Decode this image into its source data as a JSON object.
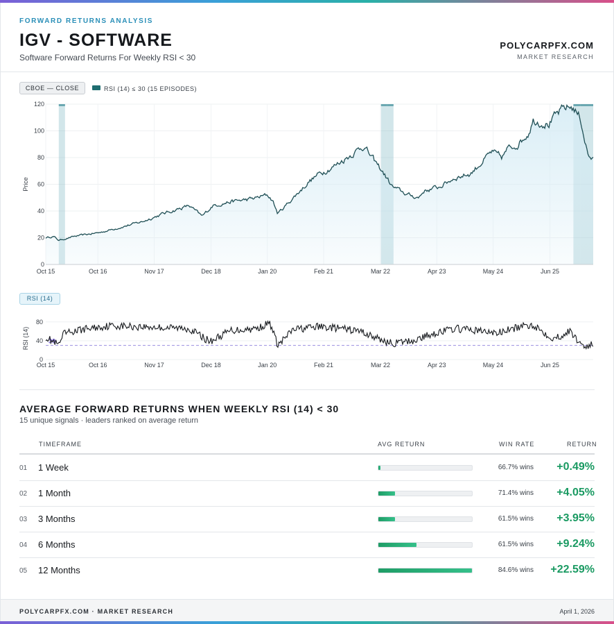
{
  "header": {
    "kicker": "FORWARD RETURNS ANALYSIS",
    "title": "IGV - SOFTWARE",
    "subtitle": "Software Forward Returns For Weekly RSI < 30",
    "brand": "POLYCARPFX.COM",
    "brand_sub": "MARKET RESEARCH"
  },
  "controls": {
    "source_button": "CBOE — CLOSE",
    "legend_label": "RSI (14) ≤ 30 (15 EPISODES)",
    "rsi_button": "RSI (14)"
  },
  "colors": {
    "price_line": "#1f4f55",
    "price_fill": "#d6ecf5",
    "shade": "#7fb8c4",
    "rsi_line": "#15181c",
    "threshold": "#9a8ee0",
    "positive": "#1a9a62"
  },
  "chart_data": [
    {
      "type": "area",
      "title": "IGV - SOFTWARE",
      "ylabel": "Price",
      "ylim": [
        0,
        120
      ],
      "yticks": [
        "0",
        "20",
        "40",
        "60",
        "80",
        "100",
        "120"
      ],
      "xticks": [
        "Oct 15",
        "Oct 16",
        "Nov 17",
        "Dec 18",
        "Jan 20",
        "Feb 21",
        "Mar 22",
        "Apr 23",
        "May 24",
        "Jun 25"
      ],
      "x": [
        2015.75,
        2015.9,
        2016.0,
        2016.3,
        2016.8,
        2017.2,
        2017.6,
        2018.0,
        2018.5,
        2018.75,
        2018.95,
        2019.3,
        2019.7,
        2020.0,
        2020.1,
        2020.2,
        2020.5,
        2020.8,
        2021.0,
        2021.3,
        2021.6,
        2021.85,
        2022.0,
        2022.2,
        2022.4,
        2022.7,
        2022.9,
        2023.0,
        2023.3,
        2023.6,
        2023.9,
        2024.0,
        2024.3,
        2024.5,
        2024.6,
        2024.8,
        2025.0,
        2025.1,
        2025.4,
        2025.55,
        2025.7,
        2025.85,
        2026.0,
        2026.15,
        2026.25
      ],
      "series": [
        {
          "name": "IGV Close",
          "values": [
            20,
            21,
            18,
            21,
            24,
            28,
            32,
            38,
            44,
            36,
            44,
            47,
            49,
            52,
            48,
            38,
            50,
            62,
            68,
            74,
            82,
            89,
            80,
            70,
            58,
            52,
            50,
            55,
            58,
            65,
            68,
            72,
            84,
            80,
            86,
            90,
            98,
            108,
            105,
            112,
            117,
            118,
            110,
            82,
            78
          ]
        }
      ],
      "signal_episodes": [
        "Jan 2016",
        "Mar 2022",
        "Jun 2022",
        "Feb 2026",
        "Mar 2026"
      ]
    },
    {
      "type": "line",
      "title": "RSI (14)",
      "ylabel": "RSI (14)",
      "ylim": [
        0,
        90
      ],
      "yticks": [
        "0",
        "40",
        "80"
      ],
      "threshold": 30,
      "threshold_label": "30",
      "xticks": [
        "Oct 15",
        "Oct 16",
        "Nov 17",
        "Dec 18",
        "Jan 20",
        "Feb 21",
        "Mar 22",
        "Apr 23",
        "May 24",
        "Jun 25"
      ],
      "x": [
        2015.75,
        2016.0,
        2016.1,
        2016.5,
        2017.0,
        2017.5,
        2018.0,
        2018.5,
        2018.9,
        2019.3,
        2019.8,
        2020.05,
        2020.2,
        2020.5,
        2021.0,
        2021.4,
        2021.8,
        2022.1,
        2022.4,
        2022.8,
        2023.2,
        2023.6,
        2024.0,
        2024.4,
        2024.8,
        2025.1,
        2025.3,
        2025.5,
        2025.8,
        2026.0,
        2026.1,
        2026.25
      ],
      "series": [
        {
          "name": "RSI (14)",
          "values": [
            48,
            30,
            55,
            65,
            72,
            70,
            68,
            66,
            38,
            62,
            66,
            78,
            30,
            64,
            70,
            66,
            60,
            45,
            34,
            40,
            56,
            66,
            62,
            56,
            68,
            74,
            58,
            44,
            60,
            35,
            28,
            32
          ]
        }
      ]
    }
  ],
  "table": {
    "title": "AVERAGE FORWARD RETURNS WHEN WEEKLY RSI (14) < 30",
    "subtitle": "15 unique signals · leaders ranked on average return",
    "headers": {
      "timeframe": "TIMEFRAME",
      "avg": "AVG RETURN",
      "win": "WIN RATE",
      "ret": "RETURN"
    },
    "rows": [
      {
        "num": "01",
        "timeframe": "1 Week",
        "avg_fraction": 0.022,
        "win": "66.7% wins",
        "ret": "+0.49%"
      },
      {
        "num": "02",
        "timeframe": "1 Month",
        "avg_fraction": 0.179,
        "win": "71.4% wins",
        "ret": "+4.05%"
      },
      {
        "num": "03",
        "timeframe": "3 Months",
        "avg_fraction": 0.175,
        "win": "61.5% wins",
        "ret": "+3.95%"
      },
      {
        "num": "04",
        "timeframe": "6 Months",
        "avg_fraction": 0.409,
        "win": "61.5% wins",
        "ret": "+9.24%"
      },
      {
        "num": "05",
        "timeframe": "12 Months",
        "avg_fraction": 1.0,
        "win": "84.6% wins",
        "ret": "+22.59%"
      }
    ]
  },
  "footer": {
    "left": "POLYCARPFX.COM · MARKET RESEARCH",
    "right": "April 1, 2026"
  }
}
